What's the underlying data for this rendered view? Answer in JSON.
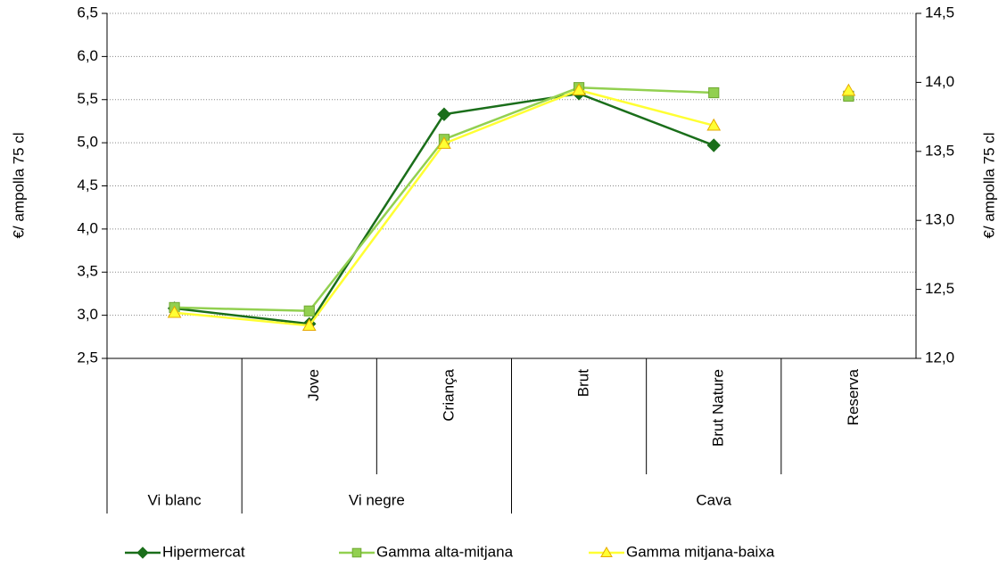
{
  "chart_data": {
    "type": "line",
    "categories": [
      null,
      "Jove",
      "Criança",
      "Brut",
      "Brut Nature",
      "Reserva"
    ],
    "groups": [
      {
        "label": "Vi blanc",
        "span": 1
      },
      {
        "label": "Vi negre",
        "span": 2
      },
      {
        "label": "Cava",
        "span": 3
      }
    ],
    "y_label": "€/ ampolla 75 cl",
    "y2_label": "€/ ampolla 75 cl",
    "ylim": [
      2.5,
      6.5
    ],
    "yticks": [
      {
        "value": 2.5,
        "label": "2,5"
      },
      {
        "value": 3.0,
        "label": "3,0"
      },
      {
        "value": 3.5,
        "label": "3,5"
      },
      {
        "value": 4.0,
        "label": "4,0"
      },
      {
        "value": 4.5,
        "label": "4,5"
      },
      {
        "value": 5.0,
        "label": "5,0"
      },
      {
        "value": 5.5,
        "label": "5,5"
      },
      {
        "value": 6.0,
        "label": "6,0"
      },
      {
        "value": 6.5,
        "label": "6,5"
      }
    ],
    "y2lim": [
      12.0,
      14.5
    ],
    "y2ticks": [
      {
        "value": 12.0,
        "label": "12,0"
      },
      {
        "value": 12.5,
        "label": "12,5"
      },
      {
        "value": 13.0,
        "label": "13,0"
      },
      {
        "value": 13.5,
        "label": "13,5"
      },
      {
        "value": 14.0,
        "label": "14,0"
      },
      {
        "value": 14.5,
        "label": "14,5"
      }
    ],
    "grid": true,
    "legend": "bottom",
    "series": [
      {
        "name": "Hipermercat",
        "color": "#1a6e1a",
        "marker": "diamond",
        "values": [
          3.08,
          2.9,
          5.33,
          5.57,
          4.97,
          null
        ],
        "y2_values": [
          null,
          null,
          null,
          null,
          null,
          null
        ]
      },
      {
        "name": "Gamma alta-mitjana",
        "color": "#92d050",
        "marker": "square",
        "values": [
          3.09,
          3.05,
          5.04,
          5.64,
          5.58,
          null
        ],
        "y2_values": [
          null,
          null,
          null,
          null,
          null,
          13.9
        ]
      },
      {
        "name": "Gamma mitjana-baixa",
        "color": "#ffff33",
        "marker": "triangle",
        "values": [
          3.03,
          2.88,
          4.99,
          5.61,
          5.2,
          null
        ],
        "y2_values": [
          null,
          null,
          null,
          null,
          null,
          13.94
        ]
      }
    ]
  }
}
